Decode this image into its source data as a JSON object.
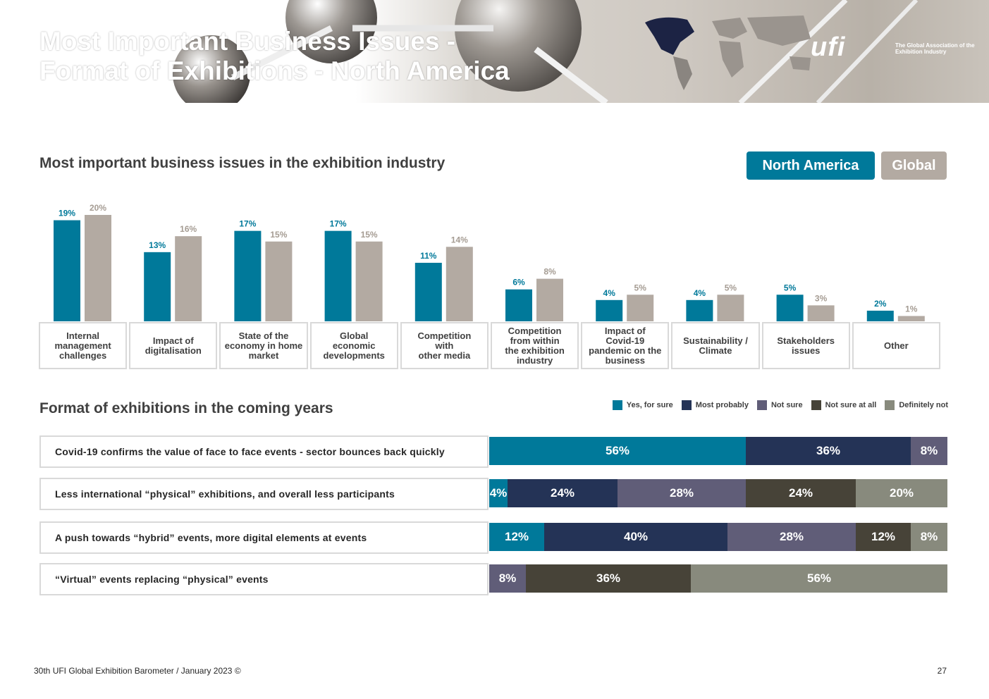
{
  "header": {
    "title_line1": "Most Important Business Issues -",
    "title_line2": "Format of Exhibitions - North America",
    "logo_text": "ufi",
    "logo_subtitle": "The Global Association of the Exhibition Industry"
  },
  "toggle": {
    "north_america": "North America",
    "global": "Global"
  },
  "colors": {
    "north_america": "#00799a",
    "global": "#b3aaa2",
    "yes_for_sure": "#00799a",
    "most_probably": "#243356",
    "not_sure": "#605d78",
    "not_sure_at_all": "#474338",
    "definitely_not": "#888a7d"
  },
  "chart_data": [
    {
      "type": "bar",
      "title": "Most important business issues in the exhibition industry",
      "categories": [
        "Internal\nmanagement\nchallenges",
        "Impact of\ndigitalisation",
        "State of the\neconomy in home\nmarket",
        "Global\neconomic\ndevelopments",
        "Competition\nwith\nother media",
        "Competition\nfrom within\nthe exhibition\nindustry",
        "Impact of\nCovid-19\npandemic on the\nbusiness",
        "Sustainability /\nClimate",
        "Stakeholders\nissues",
        "Other"
      ],
      "series": [
        {
          "name": "North America",
          "values": [
            19,
            13,
            17,
            17,
            11,
            6,
            4,
            4,
            5,
            2
          ]
        },
        {
          "name": "Global",
          "values": [
            20,
            16,
            15,
            15,
            14,
            8,
            5,
            5,
            3,
            1
          ]
        }
      ],
      "value_suffix": "%",
      "ylim": [
        0,
        20
      ],
      "grid": false
    },
    {
      "type": "bar",
      "orientation": "horizontal-stacked",
      "title": "Format of exhibitions in the coming years",
      "legend": [
        "Yes, for sure",
        "Most probably",
        "Not sure",
        "Not sure at all",
        "Definitely not"
      ],
      "legend_position": "top-right",
      "rows": [
        {
          "label": "Covid-19 confirms the value of face to face events - sector bounces back quickly",
          "values": [
            56,
            36,
            8,
            0,
            0
          ]
        },
        {
          "label": "Less international “physical” exhibitions, and overall less participants",
          "values": [
            4,
            24,
            28,
            24,
            20
          ]
        },
        {
          "label": "A push towards “hybrid” events, more digital elements at events",
          "values": [
            12,
            40,
            28,
            12,
            8
          ]
        },
        {
          "label": "“Virtual” events replacing “physical” events",
          "values": [
            0,
            0,
            8,
            36,
            56
          ]
        }
      ],
      "value_suffix": "%"
    }
  ],
  "footer": {
    "source": "30th UFI Global Exhibition Barometer / January 2023 ©",
    "page": "27"
  }
}
